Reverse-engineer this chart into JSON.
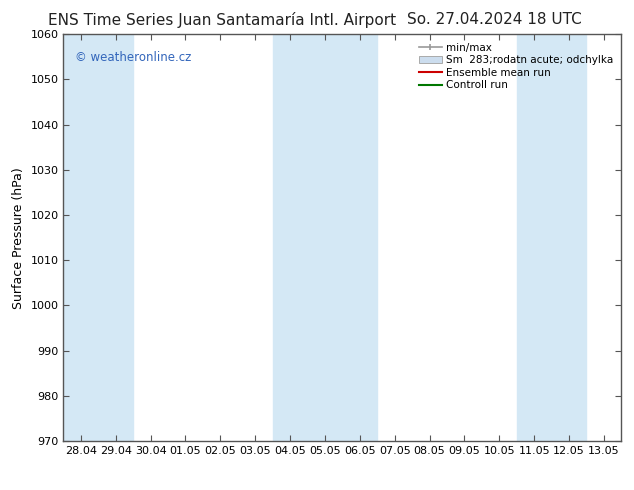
{
  "title_left": "ENS Time Series Juan Santamaría Intl. Airport",
  "title_right": "So. 27.04.2024 18 UTC",
  "ylabel": "Surface Pressure (hPa)",
  "ylim": [
    970,
    1060
  ],
  "yticks": [
    970,
    980,
    990,
    1000,
    1010,
    1020,
    1030,
    1040,
    1050,
    1060
  ],
  "x_labels": [
    "28.04",
    "29.04",
    "30.04",
    "01.05",
    "02.05",
    "03.05",
    "04.05",
    "05.05",
    "06.05",
    "07.05",
    "08.05",
    "09.05",
    "10.05",
    "11.05",
    "12.05",
    "13.05"
  ],
  "shaded_band_ranges": [
    [
      0,
      1
    ],
    [
      6,
      8
    ],
    [
      13,
      14
    ]
  ],
  "band_color": "#d4e8f5",
  "bg_color": "#ffffff",
  "plot_bg_color": "#ffffff",
  "mean_run_color": "#cc0000",
  "control_run_color": "#007700",
  "title_fontsize": 11,
  "axis_label_fontsize": 9,
  "tick_fontsize": 8,
  "watermark_text": "© weatheronline.cz",
  "watermark_color": "#3366bb",
  "legend_labels": [
    "min/max",
    "Sm  283;rodatn acute; odchylka",
    "Ensemble mean run",
    "Controll run"
  ]
}
